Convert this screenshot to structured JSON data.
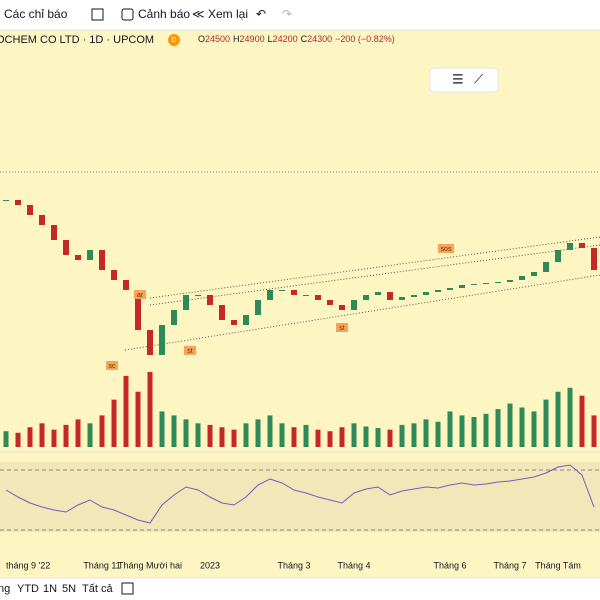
{
  "toolbar": {
    "indicators": "Các chỉ báo",
    "alerts": "Cảnh báo",
    "replay": "Xem lại"
  },
  "header": {
    "symbol": "OCHEM CO LTD · 1D · UPCOM",
    "badge": "D",
    "open_label": "O",
    "open": 24500,
    "high_label": "H",
    "high": 24900,
    "low_label": "L",
    "low": 24200,
    "close_label": "C",
    "close": 24300,
    "change": "−200 (−0.82%)"
  },
  "chart_data": {
    "type": "candlestick",
    "categories": [
      "tháng 9 '22",
      null,
      null,
      null,
      null,
      null,
      null,
      null,
      "Tháng 11",
      null,
      null,
      null,
      "Tháng Mười hai",
      null,
      null,
      null,
      null,
      "2023",
      null,
      null,
      null,
      null,
      null,
      null,
      "Tháng 3",
      null,
      null,
      null,
      null,
      "Tháng 4",
      null,
      null,
      null,
      null,
      null,
      null,
      null,
      "Tháng 6",
      null,
      null,
      null,
      null,
      "Tháng 7",
      null,
      null,
      null,
      "Tháng Tám",
      null,
      null,
      null
    ],
    "series": [
      {
        "name": "close",
        "values": [
          27800,
          27550,
          27050,
          26550,
          25800,
          25050,
          24800,
          25300,
          24300,
          23800,
          23300,
          21300,
          20050,
          21550,
          22300,
          23050,
          23050,
          22550,
          21800,
          21550,
          22050,
          22800,
          23300,
          23300,
          23050,
          23050,
          22800,
          22550,
          22300,
          22800,
          23050,
          23200,
          22800,
          22950,
          23050,
          23200,
          23300,
          23400,
          23550,
          23600,
          23650,
          23700,
          23800,
          24000,
          24200,
          24700,
          25300,
          25650,
          25400,
          24300
        ]
      },
      {
        "name": "volume",
        "values": [
          20,
          18,
          25,
          30,
          22,
          28,
          35,
          30,
          40,
          60,
          90,
          70,
          95,
          45,
          40,
          35,
          30,
          28,
          25,
          22,
          30,
          35,
          40,
          30,
          25,
          28,
          22,
          20,
          25,
          30,
          26,
          24,
          22,
          28,
          30,
          35,
          32,
          45,
          40,
          38,
          42,
          48,
          55,
          50,
          45,
          60,
          70,
          75,
          65,
          40
        ]
      },
      {
        "name": "rsi",
        "values": [
          55,
          48,
          42,
          38,
          35,
          33,
          40,
          45,
          38,
          35,
          30,
          25,
          22,
          40,
          50,
          58,
          55,
          48,
          42,
          40,
          48,
          60,
          66,
          62,
          55,
          52,
          48,
          45,
          42,
          52,
          56,
          58,
          50,
          54,
          56,
          58,
          57,
          60,
          62,
          60,
          61,
          63,
          64,
          66,
          68,
          72,
          78,
          80,
          70,
          38
        ]
      }
    ],
    "annotations": [
      "ar",
      "sc",
      "st",
      "st",
      "sos"
    ]
  },
  "range_bar": {
    "partial": "ng",
    "ytd": "YTD",
    "one_year": "1N",
    "five_year": "5N",
    "all": "Tất cả"
  }
}
